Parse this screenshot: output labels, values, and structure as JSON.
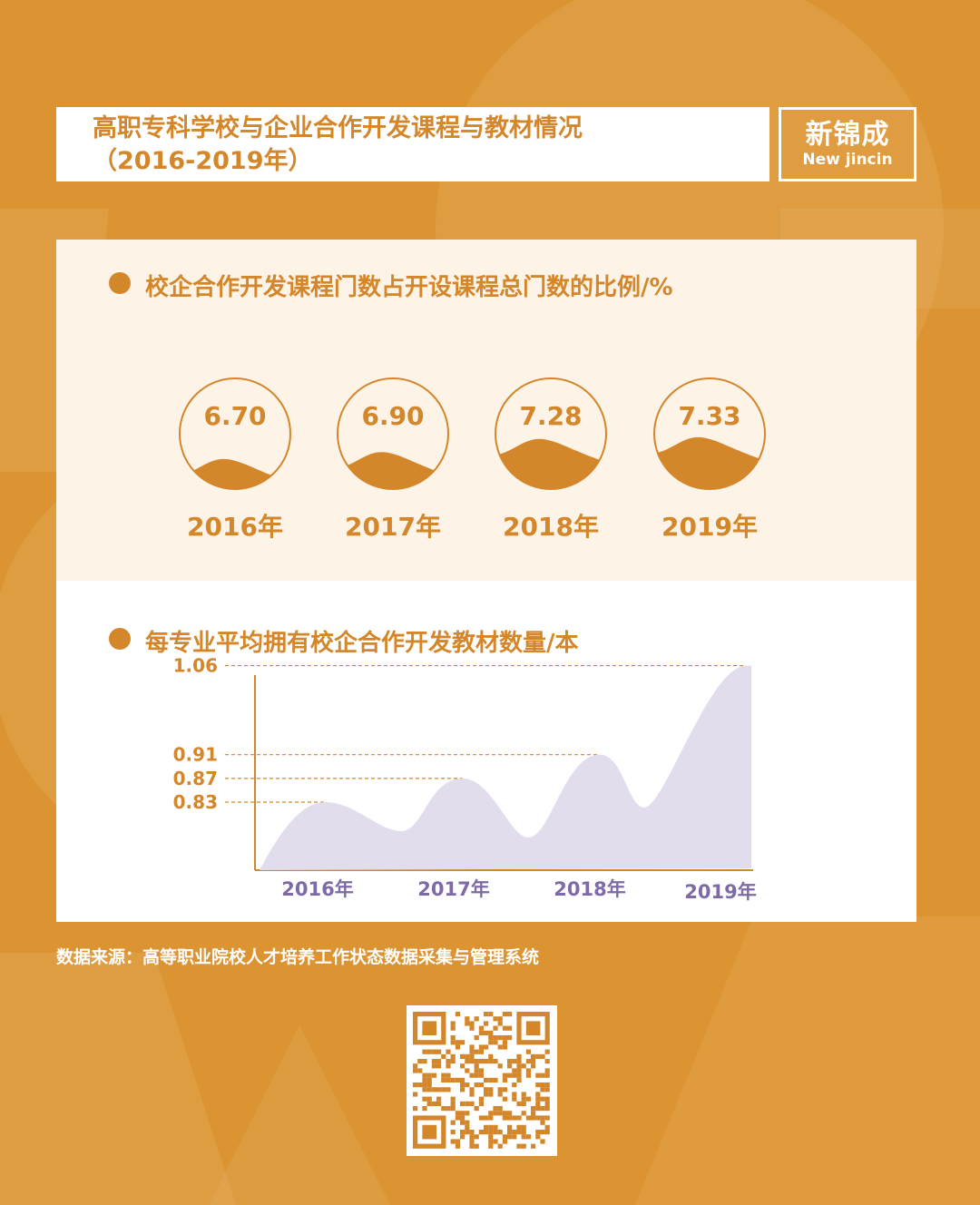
{
  "header": {
    "title_line1": "高职专科学校与企业合作开发课程与教材情况",
    "title_line2": "（2016-2019年）"
  },
  "logo": {
    "cn": "新锦成",
    "en": "New jincin"
  },
  "colors": {
    "background": "#DC9432",
    "accent": "#D4862A",
    "panel_light": "#FDF3E6",
    "area_fill": "#E2DDEC",
    "year_label": "#7D6AA6"
  },
  "chart_data": [
    {
      "type": "gauge",
      "title": "校企合作开发课程门数占开设课程总门数的比例/%",
      "categories": [
        "2016年",
        "2017年",
        "2018年",
        "2019年"
      ],
      "values": [
        "6.70",
        "6.90",
        "7.28",
        "7.33"
      ]
    },
    {
      "type": "area",
      "title": "每专业平均拥有校企合作开发教材数量/本",
      "categories": [
        "2016年",
        "2017年",
        "2018年",
        "2019年"
      ],
      "values": [
        0.83,
        0.87,
        0.91,
        1.06
      ],
      "y_tick_labels": [
        "1.06",
        "0.91",
        "0.87",
        "0.83"
      ],
      "grid": "dashed reference lines at data values"
    }
  ],
  "footer": {
    "source": "数据来源：高等职业院校人才培养工作状态数据采集与管理系统",
    "qr_icon": "qr-code-icon"
  }
}
